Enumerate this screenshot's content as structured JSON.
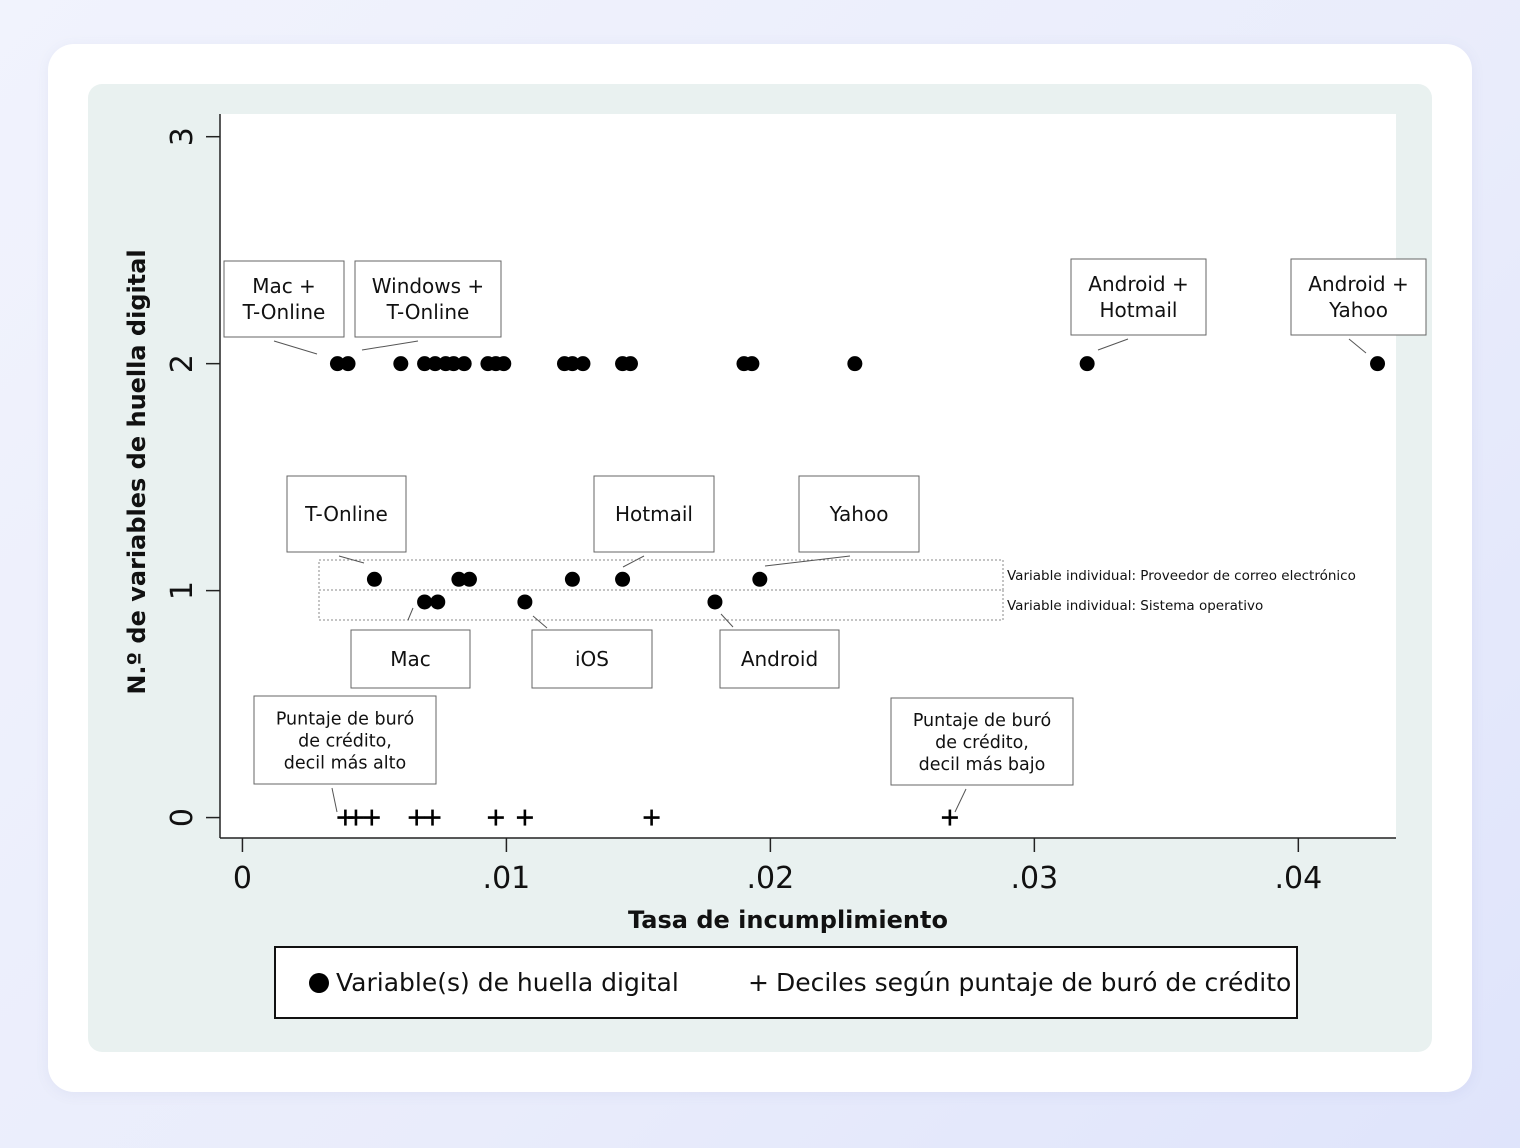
{
  "chart_data": {
    "type": "scatter",
    "xlabel": "Tasa de incumplimiento",
    "ylabel": "N.º de variables de huella digital",
    "xlim": [
      -0.00085,
      0.0437
    ],
    "ylim": [
      -0.09,
      3.1
    ],
    "xticks": [
      0,
      0.01,
      0.02,
      0.03,
      0.04
    ],
    "xtick_labels": [
      "0",
      ".01",
      ".02",
      ".03",
      ".04"
    ],
    "yticks": [
      0,
      1,
      2,
      3
    ],
    "ytick_labels": [
      "0",
      "1",
      "2",
      "3"
    ],
    "grid": false,
    "legend_position": "bottom",
    "series": [
      {
        "name": "Variable(s) de huella digital",
        "marker": "circle",
        "points": [
          {
            "x": 0.0036,
            "y": 2
          },
          {
            "x": 0.004,
            "y": 2
          },
          {
            "x": 0.006,
            "y": 2
          },
          {
            "x": 0.0069,
            "y": 2
          },
          {
            "x": 0.0073,
            "y": 2
          },
          {
            "x": 0.0077,
            "y": 2
          },
          {
            "x": 0.008,
            "y": 2
          },
          {
            "x": 0.0084,
            "y": 2
          },
          {
            "x": 0.0093,
            "y": 2
          },
          {
            "x": 0.0096,
            "y": 2
          },
          {
            "x": 0.0099,
            "y": 2
          },
          {
            "x": 0.0122,
            "y": 2
          },
          {
            "x": 0.0125,
            "y": 2
          },
          {
            "x": 0.0129,
            "y": 2
          },
          {
            "x": 0.0144,
            "y": 2
          },
          {
            "x": 0.0147,
            "y": 2
          },
          {
            "x": 0.019,
            "y": 2
          },
          {
            "x": 0.0193,
            "y": 2
          },
          {
            "x": 0.0232,
            "y": 2
          },
          {
            "x": 0.032,
            "y": 2
          },
          {
            "x": 0.043,
            "y": 2
          },
          {
            "x": 0.005,
            "y": 1.05
          },
          {
            "x": 0.0082,
            "y": 1.05
          },
          {
            "x": 0.0086,
            "y": 1.05
          },
          {
            "x": 0.0125,
            "y": 1.05
          },
          {
            "x": 0.0144,
            "y": 1.05
          },
          {
            "x": 0.0196,
            "y": 1.05
          },
          {
            "x": 0.0069,
            "y": 0.95
          },
          {
            "x": 0.0074,
            "y": 0.95
          },
          {
            "x": 0.0107,
            "y": 0.95
          },
          {
            "x": 0.0179,
            "y": 0.95
          }
        ]
      },
      {
        "name": "Deciles según puntaje de buró de crédito",
        "marker": "plus",
        "points": [
          {
            "x": 0.0039,
            "y": 0
          },
          {
            "x": 0.0043,
            "y": 0
          },
          {
            "x": 0.0049,
            "y": 0
          },
          {
            "x": 0.0066,
            "y": 0
          },
          {
            "x": 0.0072,
            "y": 0
          },
          {
            "x": 0.0096,
            "y": 0
          },
          {
            "x": 0.0107,
            "y": 0
          },
          {
            "x": 0.0155,
            "y": 0
          },
          {
            "x": 0.0268,
            "y": 0
          }
        ]
      }
    ],
    "annotations": [
      {
        "text": "Mac +\nT-Online",
        "x": 0.0036,
        "y": 2
      },
      {
        "text": "Windows +\nT-Online",
        "x": 0.004,
        "y": 2
      },
      {
        "text": "Android +\nHotmail",
        "x": 0.032,
        "y": 2
      },
      {
        "text": "Android +\nYahoo",
        "x": 0.043,
        "y": 2
      },
      {
        "text": "T-Online",
        "x": 0.005,
        "y": 1.05
      },
      {
        "text": "Hotmail",
        "x": 0.0144,
        "y": 1.05
      },
      {
        "text": "Yahoo",
        "x": 0.0196,
        "y": 1.05
      },
      {
        "text": "Mac",
        "x": 0.0069,
        "y": 0.95
      },
      {
        "text": "iOS",
        "x": 0.0107,
        "y": 0.95
      },
      {
        "text": "Android",
        "x": 0.0179,
        "y": 0.95
      },
      {
        "text": "Puntaje de buró\nde crédito,\ndecil más alto",
        "x": 0.0039,
        "y": 0
      },
      {
        "text": "Puntaje de buró\nde crédito,\ndecil más bajo",
        "x": 0.0268,
        "y": 0
      }
    ],
    "bands": [
      {
        "label": "Variable individual: Proveedor de correo electrónico",
        "y": 1.05
      },
      {
        "label": "Variable individual: Sistema operativo",
        "y": 0.95
      }
    ]
  }
}
